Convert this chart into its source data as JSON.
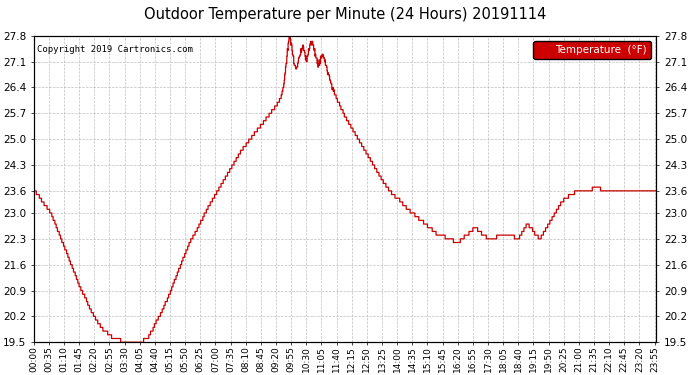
{
  "title": "Outdoor Temperature per Minute (24 Hours) 20191114",
  "copyright": "Copyright 2019 Cartronics.com",
  "legend_label": "Temperature  (°F)",
  "line_color": "#cc0000",
  "legend_bg": "#cc0000",
  "legend_text_color": "#ffffff",
  "background_color": "#ffffff",
  "grid_color": "#b0b0b0",
  "ylim": [
    19.5,
    27.8
  ],
  "yticks": [
    19.5,
    20.2,
    20.9,
    21.6,
    22.3,
    23.0,
    23.6,
    24.3,
    25.0,
    25.7,
    26.4,
    27.1,
    27.8
  ],
  "num_minutes": 1440,
  "key_points": [
    [
      0,
      23.6
    ],
    [
      10,
      23.5
    ],
    [
      20,
      23.3
    ],
    [
      30,
      23.15
    ],
    [
      40,
      23.0
    ],
    [
      50,
      22.7
    ],
    [
      60,
      22.4
    ],
    [
      70,
      22.1
    ],
    [
      80,
      21.8
    ],
    [
      90,
      21.5
    ],
    [
      100,
      21.2
    ],
    [
      110,
      20.9
    ],
    [
      120,
      20.7
    ],
    [
      130,
      20.4
    ],
    [
      140,
      20.2
    ],
    [
      150,
      20.0
    ],
    [
      160,
      19.85
    ],
    [
      170,
      19.75
    ],
    [
      180,
      19.65
    ],
    [
      190,
      19.6
    ],
    [
      200,
      19.55
    ],
    [
      210,
      19.52
    ],
    [
      220,
      19.5
    ],
    [
      230,
      19.5
    ],
    [
      240,
      19.5
    ],
    [
      250,
      19.52
    ],
    [
      260,
      19.6
    ],
    [
      265,
      19.65
    ],
    [
      270,
      19.75
    ],
    [
      275,
      19.85
    ],
    [
      280,
      20.0
    ],
    [
      290,
      20.2
    ],
    [
      300,
      20.45
    ],
    [
      310,
      20.7
    ],
    [
      320,
      21.0
    ],
    [
      330,
      21.3
    ],
    [
      340,
      21.6
    ],
    [
      350,
      21.9
    ],
    [
      360,
      22.2
    ],
    [
      370,
      22.4
    ],
    [
      380,
      22.6
    ],
    [
      390,
      22.85
    ],
    [
      400,
      23.1
    ],
    [
      410,
      23.3
    ],
    [
      420,
      23.5
    ],
    [
      430,
      23.7
    ],
    [
      440,
      23.9
    ],
    [
      450,
      24.1
    ],
    [
      460,
      24.3
    ],
    [
      470,
      24.5
    ],
    [
      480,
      24.7
    ],
    [
      490,
      24.85
    ],
    [
      500,
      25.0
    ],
    [
      510,
      25.15
    ],
    [
      520,
      25.3
    ],
    [
      530,
      25.45
    ],
    [
      540,
      25.6
    ],
    [
      550,
      25.75
    ],
    [
      560,
      25.9
    ],
    [
      570,
      26.1
    ],
    [
      575,
      26.3
    ],
    [
      578,
      26.5
    ],
    [
      580,
      26.7
    ],
    [
      582,
      26.9
    ],
    [
      584,
      27.1
    ],
    [
      586,
      27.35
    ],
    [
      588,
      27.55
    ],
    [
      590,
      27.75
    ],
    [
      592,
      27.8
    ],
    [
      593,
      27.7
    ],
    [
      595,
      27.55
    ],
    [
      597,
      27.4
    ],
    [
      600,
      27.2
    ],
    [
      602,
      27.05
    ],
    [
      605,
      26.9
    ],
    [
      608,
      27.0
    ],
    [
      612,
      27.15
    ],
    [
      615,
      27.3
    ],
    [
      618,
      27.4
    ],
    [
      620,
      27.5
    ],
    [
      622,
      27.55
    ],
    [
      625,
      27.4
    ],
    [
      628,
      27.25
    ],
    [
      630,
      27.1
    ],
    [
      633,
      27.2
    ],
    [
      635,
      27.35
    ],
    [
      637,
      27.5
    ],
    [
      639,
      27.6
    ],
    [
      641,
      27.65
    ],
    [
      643,
      27.6
    ],
    [
      645,
      27.5
    ],
    [
      648,
      27.4
    ],
    [
      650,
      27.3
    ],
    [
      653,
      27.2
    ],
    [
      655,
      27.1
    ],
    [
      658,
      27.0
    ],
    [
      660,
      27.05
    ],
    [
      663,
      27.15
    ],
    [
      665,
      27.25
    ],
    [
      668,
      27.3
    ],
    [
      670,
      27.2
    ],
    [
      673,
      27.1
    ],
    [
      675,
      27.0
    ],
    [
      678,
      26.9
    ],
    [
      680,
      26.8
    ],
    [
      683,
      26.7
    ],
    [
      686,
      26.55
    ],
    [
      690,
      26.4
    ],
    [
      695,
      26.25
    ],
    [
      700,
      26.1
    ],
    [
      710,
      25.85
    ],
    [
      720,
      25.6
    ],
    [
      730,
      25.4
    ],
    [
      740,
      25.2
    ],
    [
      750,
      25.0
    ],
    [
      760,
      24.8
    ],
    [
      770,
      24.6
    ],
    [
      780,
      24.4
    ],
    [
      790,
      24.2
    ],
    [
      800,
      24.0
    ],
    [
      810,
      23.8
    ],
    [
      820,
      23.65
    ],
    [
      830,
      23.5
    ],
    [
      840,
      23.4
    ],
    [
      845,
      23.35
    ],
    [
      850,
      23.3
    ],
    [
      855,
      23.2
    ],
    [
      860,
      23.15
    ],
    [
      865,
      23.1
    ],
    [
      870,
      23.05
    ],
    [
      875,
      23.0
    ],
    [
      880,
      22.95
    ],
    [
      885,
      22.9
    ],
    [
      890,
      22.85
    ],
    [
      895,
      22.8
    ],
    [
      900,
      22.75
    ],
    [
      905,
      22.7
    ],
    [
      910,
      22.65
    ],
    [
      915,
      22.6
    ],
    [
      920,
      22.55
    ],
    [
      925,
      22.5
    ],
    [
      930,
      22.45
    ],
    [
      940,
      22.4
    ],
    [
      950,
      22.35
    ],
    [
      960,
      22.3
    ],
    [
      970,
      22.25
    ],
    [
      980,
      22.2
    ],
    [
      990,
      22.3
    ],
    [
      1000,
      22.4
    ],
    [
      1010,
      22.5
    ],
    [
      1020,
      22.6
    ],
    [
      1030,
      22.5
    ],
    [
      1040,
      22.4
    ],
    [
      1050,
      22.3
    ],
    [
      1060,
      22.3
    ],
    [
      1070,
      22.35
    ],
    [
      1080,
      22.4
    ],
    [
      1090,
      22.45
    ],
    [
      1100,
      22.4
    ],
    [
      1110,
      22.35
    ],
    [
      1120,
      22.3
    ],
    [
      1130,
      22.5
    ],
    [
      1140,
      22.7
    ],
    [
      1150,
      22.6
    ],
    [
      1155,
      22.5
    ],
    [
      1160,
      22.4
    ],
    [
      1165,
      22.35
    ],
    [
      1170,
      22.3
    ],
    [
      1175,
      22.4
    ],
    [
      1180,
      22.5
    ],
    [
      1185,
      22.6
    ],
    [
      1190,
      22.7
    ],
    [
      1195,
      22.8
    ],
    [
      1200,
      22.9
    ],
    [
      1205,
      23.0
    ],
    [
      1210,
      23.1
    ],
    [
      1215,
      23.2
    ],
    [
      1220,
      23.3
    ],
    [
      1230,
      23.4
    ],
    [
      1240,
      23.5
    ],
    [
      1250,
      23.55
    ],
    [
      1260,
      23.6
    ],
    [
      1270,
      23.62
    ],
    [
      1280,
      23.64
    ],
    [
      1290,
      23.65
    ],
    [
      1300,
      23.66
    ],
    [
      1310,
      23.65
    ],
    [
      1320,
      23.64
    ],
    [
      1330,
      23.63
    ],
    [
      1340,
      23.62
    ],
    [
      1350,
      23.62
    ],
    [
      1360,
      23.63
    ],
    [
      1370,
      23.64
    ],
    [
      1380,
      23.65
    ],
    [
      1390,
      23.64
    ],
    [
      1400,
      23.63
    ],
    [
      1410,
      23.62
    ],
    [
      1420,
      23.61
    ],
    [
      1430,
      23.6
    ],
    [
      1439,
      23.6
    ]
  ],
  "xtick_interval_minutes": 35,
  "xtick_labels": [
    "00:00",
    "00:35",
    "01:10",
    "01:45",
    "02:20",
    "02:55",
    "03:30",
    "04:05",
    "04:40",
    "05:15",
    "05:50",
    "06:25",
    "07:00",
    "07:35",
    "08:10",
    "08:45",
    "09:20",
    "09:55",
    "10:30",
    "11:05",
    "11:40",
    "12:15",
    "12:50",
    "13:25",
    "14:00",
    "14:35",
    "15:10",
    "15:45",
    "16:20",
    "16:55",
    "17:30",
    "18:05",
    "18:40",
    "19:15",
    "19:50",
    "20:25",
    "21:00",
    "21:35",
    "22:10",
    "22:45",
    "23:20",
    "23:55"
  ]
}
